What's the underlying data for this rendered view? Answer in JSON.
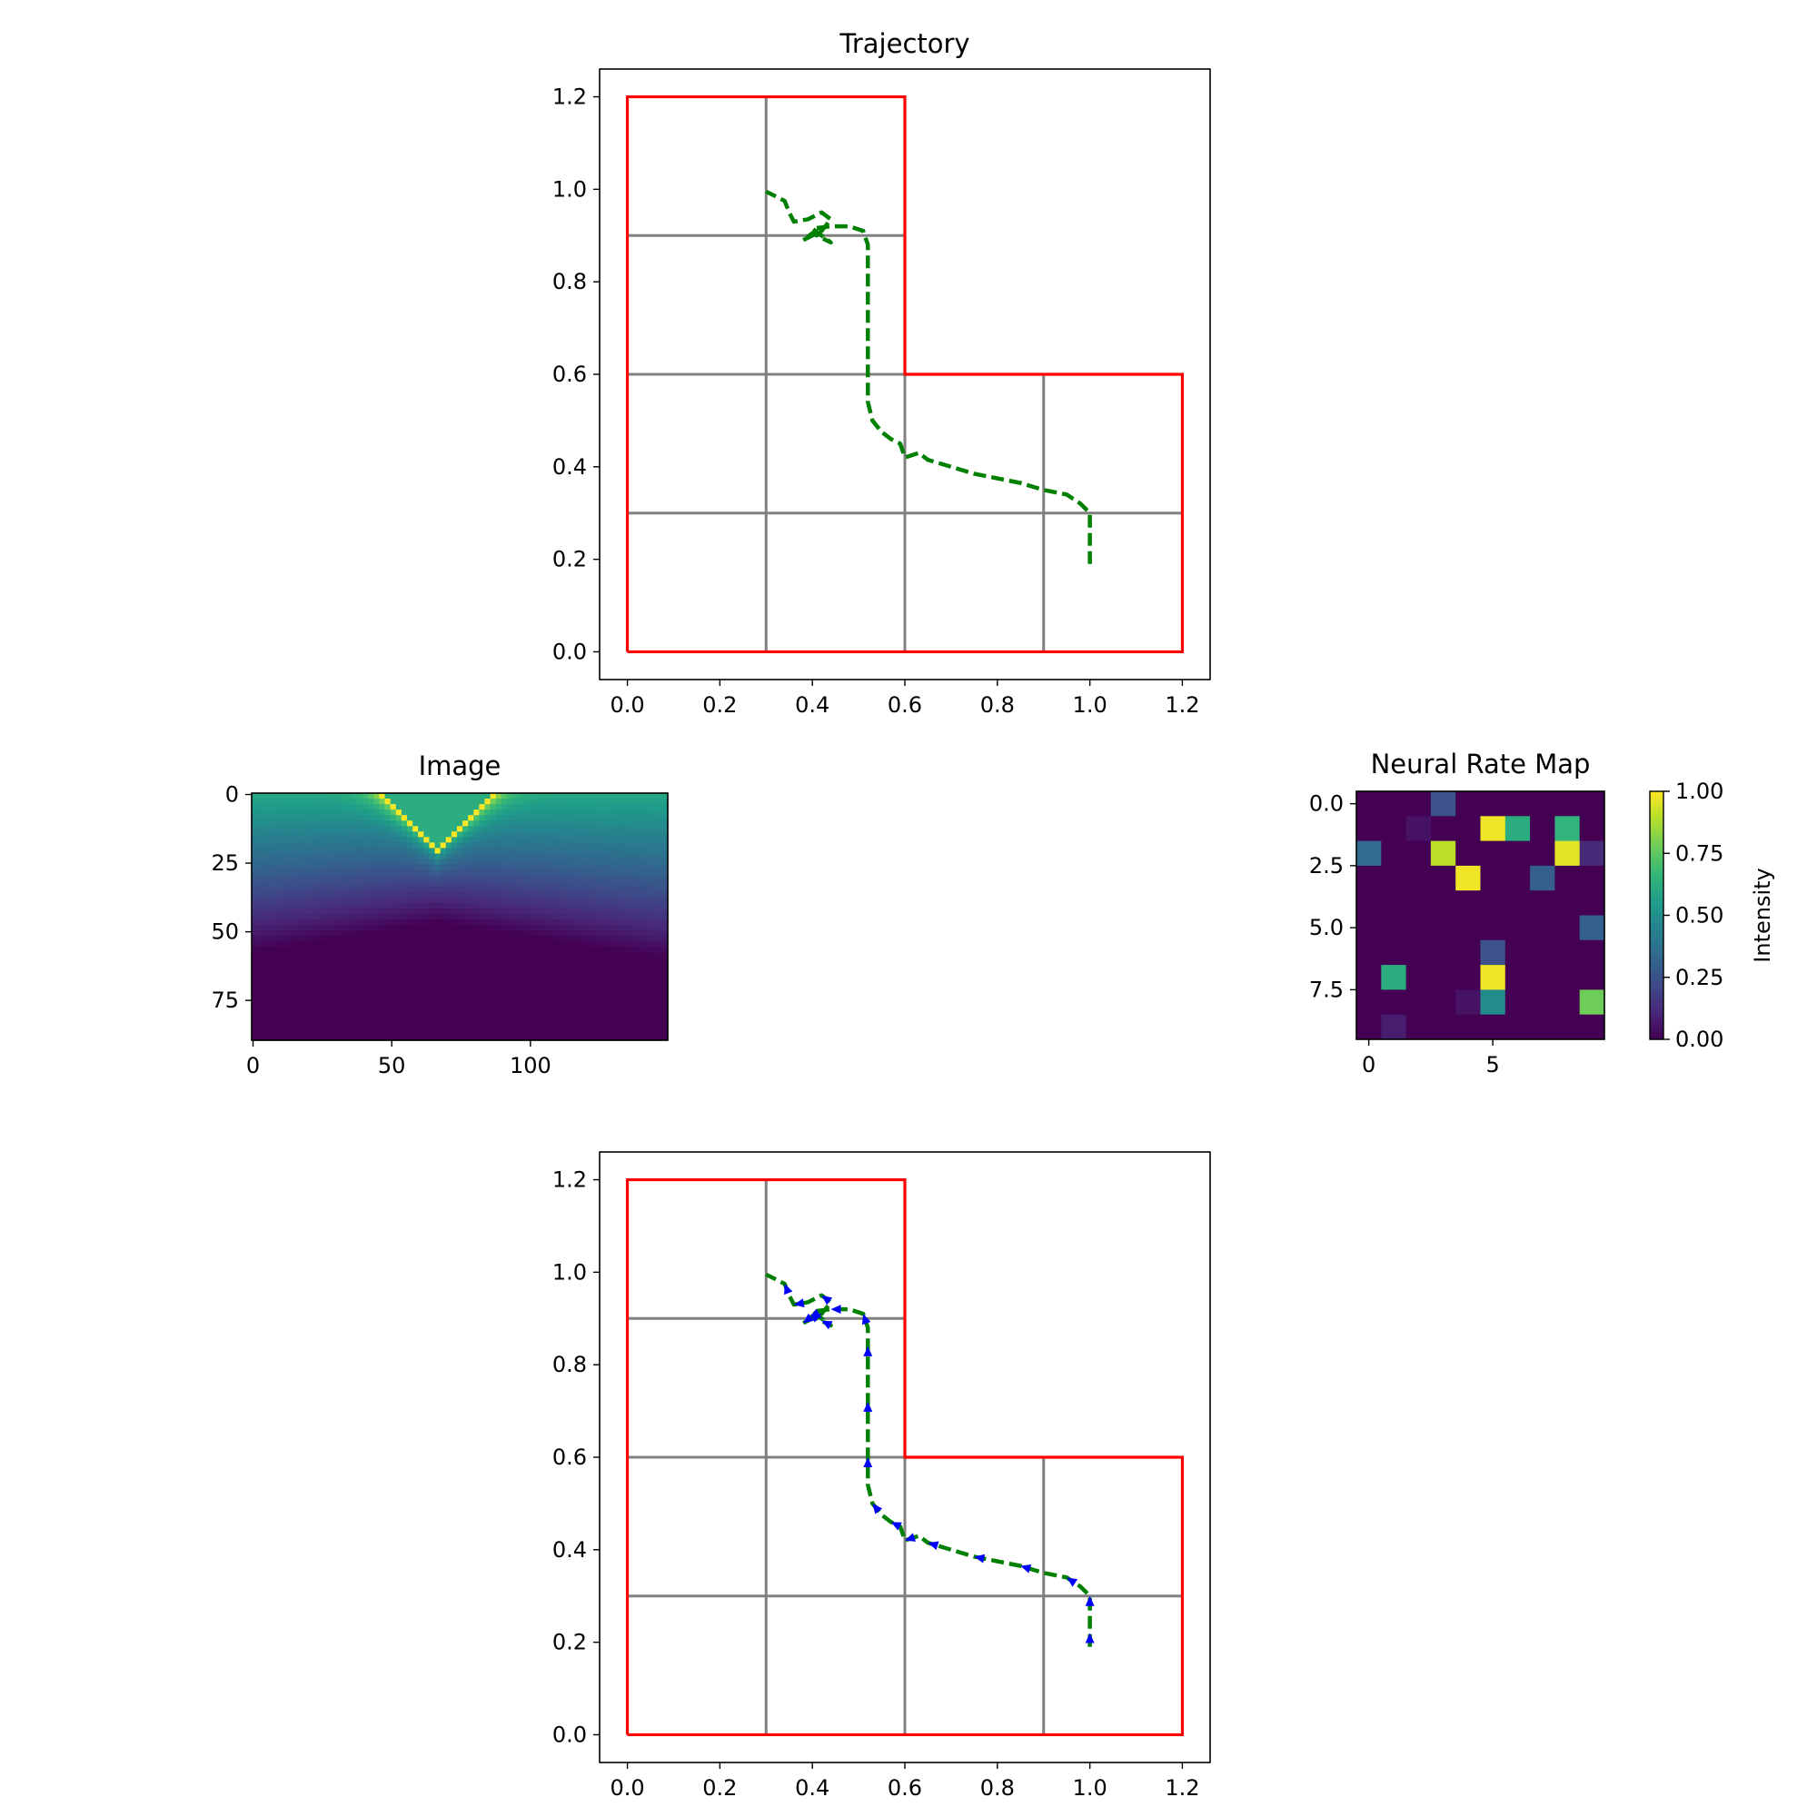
{
  "colors": {
    "boundary": "#ff0000",
    "grid": "#808080",
    "trajectory": "#008000",
    "arrows": "#0000ff",
    "colormap": "viridis"
  },
  "chart_data": [
    {
      "id": "trajectory",
      "type": "line",
      "title": "Trajectory",
      "xlim": [
        -0.06,
        1.26
      ],
      "ylim": [
        -0.06,
        1.26
      ],
      "xticks": [
        0.0,
        0.2,
        0.4,
        0.6,
        0.8,
        1.0,
        1.2
      ],
      "yticks": [
        0.0,
        0.2,
        0.4,
        0.6,
        0.8,
        1.0,
        1.2
      ],
      "tick_labels": [
        "0.0",
        "0.2",
        "0.4",
        "0.6",
        "0.8",
        "1.0",
        "1.2"
      ],
      "boundary": [
        [
          0,
          0
        ],
        [
          1.2,
          0
        ],
        [
          1.2,
          0.6
        ],
        [
          0.6,
          0.6
        ],
        [
          0.6,
          1.2
        ],
        [
          0,
          1.2
        ],
        [
          0,
          0
        ]
      ],
      "grid_segments": [
        [
          [
            0.3,
            0
          ],
          [
            0.3,
            1.2
          ]
        ],
        [
          [
            0.6,
            0
          ],
          [
            0.6,
            0.6
          ]
        ],
        [
          [
            0.9,
            0
          ],
          [
            0.9,
            0.6
          ]
        ],
        [
          [
            0,
            0.3
          ],
          [
            1.2,
            0.3
          ]
        ],
        [
          [
            0,
            0.6
          ],
          [
            0.6,
            0.6
          ]
        ],
        [
          [
            0,
            0.9
          ],
          [
            0.6,
            0.9
          ]
        ]
      ],
      "trajectory": [
        [
          1.0,
          0.19
        ],
        [
          1.0,
          0.22
        ],
        [
          1.0,
          0.26
        ],
        [
          1.0,
          0.3
        ],
        [
          0.98,
          0.32
        ],
        [
          0.95,
          0.34
        ],
        [
          0.9,
          0.35
        ],
        [
          0.85,
          0.365
        ],
        [
          0.8,
          0.375
        ],
        [
          0.75,
          0.385
        ],
        [
          0.7,
          0.4
        ],
        [
          0.65,
          0.415
        ],
        [
          0.63,
          0.43
        ],
        [
          0.6,
          0.42
        ],
        [
          0.59,
          0.45
        ],
        [
          0.57,
          0.46
        ],
        [
          0.55,
          0.475
        ],
        [
          0.53,
          0.5
        ],
        [
          0.52,
          0.54
        ],
        [
          0.52,
          0.6
        ],
        [
          0.52,
          0.66
        ],
        [
          0.52,
          0.72
        ],
        [
          0.52,
          0.78
        ],
        [
          0.52,
          0.84
        ],
        [
          0.52,
          0.88
        ],
        [
          0.51,
          0.91
        ],
        [
          0.48,
          0.92
        ],
        [
          0.44,
          0.92
        ],
        [
          0.4,
          0.915
        ],
        [
          0.42,
          0.9
        ],
        [
          0.44,
          0.885
        ],
        [
          0.42,
          0.895
        ],
        [
          0.4,
          0.905
        ],
        [
          0.38,
          0.89
        ],
        [
          0.4,
          0.9
        ],
        [
          0.42,
          0.91
        ],
        [
          0.44,
          0.935
        ],
        [
          0.42,
          0.95
        ],
        [
          0.39,
          0.935
        ],
        [
          0.36,
          0.93
        ],
        [
          0.35,
          0.95
        ],
        [
          0.34,
          0.975
        ],
        [
          0.3,
          0.995
        ]
      ],
      "arrows": false
    },
    {
      "id": "image",
      "type": "heatmap",
      "title": "Image",
      "xticks": [
        0,
        50,
        100
      ],
      "yticks": [
        0,
        25,
        50,
        75
      ],
      "width": 150,
      "height": 90,
      "vertex": [
        67,
        20
      ],
      "stripe_slope": 1,
      "band_width": 5,
      "dark_edge_center": 47,
      "dark_edge_side": 60
    },
    {
      "id": "neural-rate-map",
      "type": "heatmap",
      "title": "Neural Rate Map",
      "xticks": [
        0,
        5
      ],
      "yticks": [
        0.0,
        2.5,
        5.0,
        7.5
      ],
      "ytick_labels": [
        "0.0",
        "2.5",
        "5.0",
        "7.5"
      ],
      "grid_size": [
        10,
        10
      ],
      "values": [
        [
          0,
          0,
          0,
          0.25,
          0,
          0,
          0,
          0,
          0,
          0
        ],
        [
          0,
          0,
          0.05,
          0,
          0,
          0.98,
          0.62,
          0,
          0.65,
          0
        ],
        [
          0.35,
          0,
          0,
          0.9,
          0,
          0,
          0,
          0,
          0.96,
          0.12
        ],
        [
          0,
          0,
          0,
          0,
          0.98,
          0,
          0,
          0.3,
          0,
          0
        ],
        [
          0,
          0,
          0,
          0,
          0,
          0,
          0,
          0,
          0,
          0
        ],
        [
          0,
          0,
          0,
          0,
          0,
          0,
          0,
          0,
          0,
          0.3
        ],
        [
          0,
          0,
          0,
          0,
          0,
          0.25,
          0,
          0,
          0,
          0
        ],
        [
          0,
          0.62,
          0,
          0,
          0,
          0.98,
          0,
          0,
          0,
          0
        ],
        [
          0,
          0,
          0,
          0,
          0.05,
          0.48,
          0,
          0,
          0,
          0.78
        ],
        [
          0,
          0.08,
          0,
          0,
          0,
          0,
          0,
          0,
          0,
          0
        ]
      ],
      "colorbar": {
        "label": "Intensity",
        "range": [
          0,
          1
        ],
        "ticks": [
          0,
          0.25,
          0.5,
          0.75,
          1.0
        ],
        "tick_labels": [
          "0.00",
          "0.25",
          "0.50",
          "0.75",
          "1.00"
        ]
      }
    },
    {
      "id": "trajectory-arrows",
      "type": "line",
      "title": "",
      "xlim": [
        -0.06,
        1.26
      ],
      "ylim": [
        -0.06,
        1.26
      ],
      "xticks": [
        0.0,
        0.2,
        0.4,
        0.6,
        0.8,
        1.0,
        1.2
      ],
      "yticks": [
        0.0,
        0.2,
        0.4,
        0.6,
        0.8,
        1.0,
        1.2
      ],
      "tick_labels": [
        "0.0",
        "0.2",
        "0.4",
        "0.6",
        "0.8",
        "1.0",
        "1.2"
      ],
      "arrows": true
    }
  ]
}
